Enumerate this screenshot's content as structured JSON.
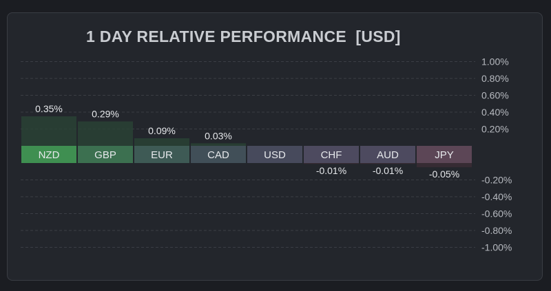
{
  "chart_data": {
    "type": "bar",
    "title": "1 DAY RELATIVE PERFORMANCE  [USD]",
    "categories": [
      "NZD",
      "GBP",
      "EUR",
      "CAD",
      "USD",
      "CHF",
      "AUD",
      "JPY"
    ],
    "values": [
      0.35,
      0.29,
      0.09,
      0.03,
      0.0,
      -0.01,
      -0.01,
      -0.05
    ],
    "value_labels": [
      "0.35%",
      "0.29%",
      "0.09%",
      "0.03%",
      "",
      "-0.01%",
      "-0.01%",
      "-0.05%"
    ],
    "ylim": [
      -1.0,
      1.0
    ],
    "y_ticks": [
      "1.00%",
      "0.80%",
      "0.60%",
      "0.40%",
      "0.20%",
      "-0.20%",
      "-0.40%",
      "-0.60%",
      "-0.80%",
      "-1.00%"
    ],
    "y_tick_values": [
      1.0,
      0.8,
      0.6,
      0.4,
      0.2,
      -0.2,
      -0.4,
      -0.6,
      -0.8,
      -1.0
    ],
    "grid": true,
    "axis_position": "right",
    "colors": {
      "background": "#1b1d22",
      "panel": "#23262c",
      "strong_positive": "#3f8f51",
      "positive": "#3c7050",
      "mild_positive": "#3e5a55",
      "slight_positive": "#414f58",
      "neutral": "#474a5c",
      "slight_negative": "#4d4a5f",
      "negative": "#5c4656",
      "positive_fill": "#2b4636",
      "negative_fill": "#3d2e36",
      "text": "#e6e8eb",
      "tick_text": "#b7bac0"
    }
  }
}
